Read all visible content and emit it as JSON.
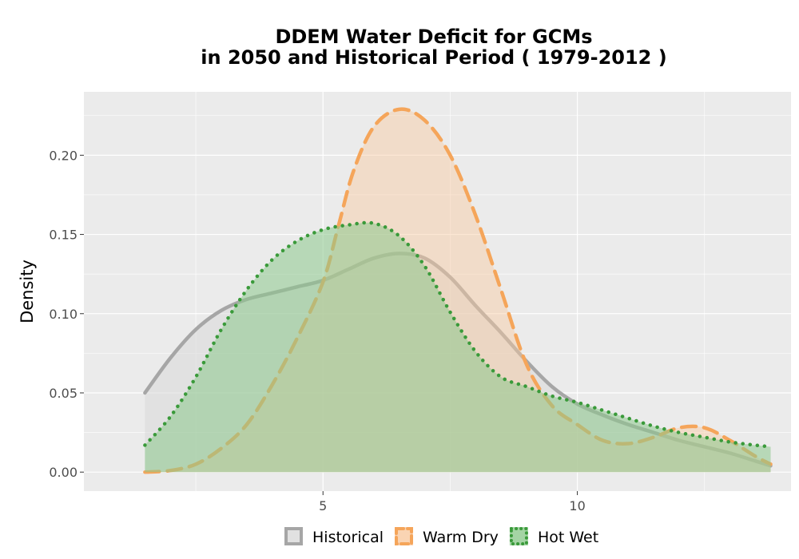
{
  "chart_data": {
    "type": "area",
    "title_lines": [
      "DDEM  Water Deficit for GCMs",
      "in 2050 and Historical Period ( 1979-2012 )"
    ],
    "xlabel": "",
    "ylabel": "Density",
    "xlim": [
      0.3,
      14.2
    ],
    "ylim": [
      -0.012,
      0.24
    ],
    "x_ticks": [
      5,
      10
    ],
    "x_tick_labels": [
      "5",
      "10"
    ],
    "y_ticks": [
      0.0,
      0.05,
      0.1,
      0.15,
      0.2
    ],
    "y_tick_labels": [
      "0.00",
      "0.05",
      "0.10",
      "0.15",
      "0.20"
    ],
    "grid": true,
    "legend_position": "bottom",
    "series": [
      {
        "name": "Historical",
        "line_color": "#a6a6a6",
        "fill_color": "#d9d9d9",
        "fill_opacity": 0.55,
        "line_style": "solid",
        "x": [
          1.5,
          2.0,
          2.5,
          3.0,
          3.5,
          4.0,
          4.5,
          5.0,
          5.5,
          6.0,
          6.5,
          7.0,
          7.5,
          8.0,
          8.5,
          9.0,
          9.5,
          10.0,
          10.5,
          11.0,
          11.5,
          12.0,
          12.5,
          13.0,
          13.5,
          13.8
        ],
        "y": [
          0.05,
          0.072,
          0.09,
          0.102,
          0.109,
          0.113,
          0.117,
          0.121,
          0.128,
          0.135,
          0.138,
          0.135,
          0.123,
          0.105,
          0.088,
          0.07,
          0.054,
          0.043,
          0.036,
          0.03,
          0.025,
          0.02,
          0.016,
          0.012,
          0.007,
          0.004
        ]
      },
      {
        "name": "Warm Dry",
        "line_color": "#f5a55a",
        "fill_color": "#f9c9a0",
        "fill_opacity": 0.45,
        "line_style": "dashed",
        "x": [
          1.5,
          2.0,
          2.5,
          3.0,
          3.5,
          4.0,
          4.5,
          5.0,
          5.3,
          5.6,
          6.0,
          6.5,
          7.0,
          7.5,
          8.0,
          8.5,
          9.0,
          9.5,
          10.0,
          10.5,
          11.0,
          11.5,
          12.0,
          12.5,
          13.0,
          13.5,
          13.8
        ],
        "y": [
          0.0,
          0.001,
          0.005,
          0.015,
          0.03,
          0.055,
          0.085,
          0.12,
          0.155,
          0.19,
          0.218,
          0.229,
          0.222,
          0.2,
          0.162,
          0.115,
          0.068,
          0.042,
          0.03,
          0.02,
          0.018,
          0.022,
          0.028,
          0.028,
          0.02,
          0.01,
          0.005
        ]
      },
      {
        "name": "Hot Wet",
        "line_color": "#3a9a3a",
        "fill_color": "#8dc98d",
        "fill_opacity": 0.55,
        "line_style": "dotted",
        "x": [
          1.5,
          2.0,
          2.5,
          3.0,
          3.5,
          4.0,
          4.5,
          5.0,
          5.5,
          6.0,
          6.5,
          7.0,
          7.5,
          8.0,
          8.5,
          9.0,
          9.5,
          10.0,
          10.5,
          11.0,
          11.5,
          12.0,
          12.5,
          13.0,
          13.5,
          13.8
        ],
        "y": [
          0.017,
          0.035,
          0.06,
          0.09,
          0.115,
          0.134,
          0.146,
          0.153,
          0.156,
          0.157,
          0.149,
          0.13,
          0.101,
          0.076,
          0.06,
          0.054,
          0.048,
          0.044,
          0.039,
          0.034,
          0.029,
          0.025,
          0.022,
          0.019,
          0.017,
          0.016
        ]
      }
    ]
  }
}
